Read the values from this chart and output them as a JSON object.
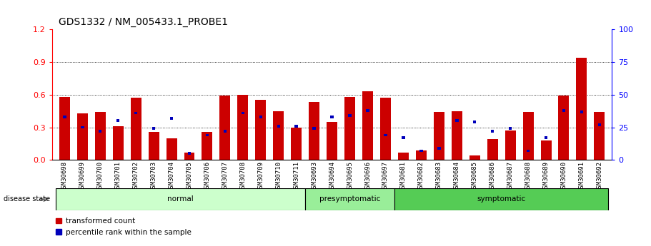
{
  "title": "GDS1332 / NM_005433.1_PROBE1",
  "samples": [
    "GSM30698",
    "GSM30699",
    "GSM30700",
    "GSM30701",
    "GSM30702",
    "GSM30703",
    "GSM30704",
    "GSM30705",
    "GSM30706",
    "GSM30707",
    "GSM30708",
    "GSM30709",
    "GSM30710",
    "GSM30711",
    "GSM30693",
    "GSM30694",
    "GSM30695",
    "GSM30696",
    "GSM30697",
    "GSM30681",
    "GSM30682",
    "GSM30683",
    "GSM30684",
    "GSM30685",
    "GSM30686",
    "GSM30687",
    "GSM30688",
    "GSM30689",
    "GSM30690",
    "GSM30691",
    "GSM30692"
  ],
  "red_values": [
    0.58,
    0.43,
    0.44,
    0.31,
    0.57,
    0.26,
    0.2,
    0.07,
    0.26,
    0.59,
    0.6,
    0.55,
    0.45,
    0.3,
    0.53,
    0.35,
    0.58,
    0.63,
    0.57,
    0.07,
    0.09,
    0.44,
    0.45,
    0.04,
    0.19,
    0.27,
    0.44,
    0.18,
    0.59,
    0.94,
    0.44
  ],
  "blue_percentile": [
    33,
    25,
    22,
    30,
    36,
    24,
    32,
    5,
    19,
    22,
    36,
    33,
    26,
    26,
    24,
    33,
    34,
    38,
    19,
    17,
    7,
    9,
    30,
    29,
    22,
    24,
    7,
    17,
    38,
    37,
    27
  ],
  "groups": [
    {
      "label": "normal",
      "start": 0,
      "end": 13,
      "color": "#ccffcc"
    },
    {
      "label": "presymptomatic",
      "start": 14,
      "end": 18,
      "color": "#99ee99"
    },
    {
      "label": "symptomatic",
      "start": 19,
      "end": 30,
      "color": "#55cc55"
    }
  ],
  "ylim_left": [
    0,
    1.2
  ],
  "ylim_right": [
    0,
    100
  ],
  "yticks_left": [
    0,
    0.3,
    0.6,
    0.9,
    1.2
  ],
  "yticks_right": [
    0,
    25,
    50,
    75,
    100
  ],
  "bar_color_red": "#cc0000",
  "bar_color_blue": "#0000bb",
  "tick_label_fontsize": 6.5,
  "title_fontsize": 10
}
